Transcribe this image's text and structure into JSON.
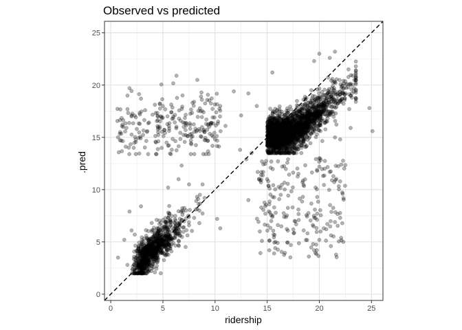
{
  "chart_data": {
    "type": "scatter",
    "title": "Observed vs predicted",
    "xlabel": "ridership",
    "ylabel": ".pred",
    "xlim": [
      -0.6,
      26.1
    ],
    "ylim": [
      -0.6,
      26.1
    ],
    "x_ticks": [
      0,
      5,
      10,
      15,
      20,
      25
    ],
    "y_ticks": [
      0,
      5,
      10,
      15,
      20,
      25
    ],
    "grid": true,
    "aspect": "equal",
    "reference_line": {
      "slope": 1,
      "intercept": 0,
      "style": "dashed",
      "color": "#000000"
    },
    "point_style": {
      "color": "#000000",
      "alpha": 0.3,
      "stroke": "#000000"
    },
    "clusters": [
      {
        "description": "low ridership, low prediction",
        "x_range": [
          1.5,
          8.5
        ],
        "y_range": [
          2,
          12
        ],
        "center": [
          4,
          4.5
        ],
        "approx_n": 900
      },
      {
        "description": "high ridership, high prediction",
        "x_range": [
          13.5,
          23.5
        ],
        "y_range": [
          13.5,
          23.3
        ],
        "center": [
          18,
          16.5
        ],
        "approx_n": 2200
      },
      {
        "description": "low ridership, mid prediction",
        "x_range": [
          0.5,
          10.5
        ],
        "y_range": [
          13.5,
          21.7
        ],
        "center": [
          4.5,
          16
        ],
        "approx_n": 250
      },
      {
        "description": "high ridership, low prediction",
        "x_range": [
          13.5,
          22.5
        ],
        "y_range": [
          3.5,
          13
        ],
        "center": [
          18,
          7
        ],
        "approx_n": 200
      }
    ],
    "points": [
      [
        0.7,
        15.0
      ],
      [
        0.9,
        15.5
      ],
      [
        1.2,
        16.0
      ],
      [
        1.5,
        15.9
      ],
      [
        1.6,
        17.7
      ],
      [
        1.6,
        19.0
      ],
      [
        1.8,
        19.7
      ],
      [
        2.0,
        17.1
      ],
      [
        2.2,
        14.0
      ],
      [
        2.5,
        15.8
      ],
      [
        2.9,
        18.7
      ],
      [
        3.5,
        15.6
      ],
      [
        4.5,
        17.0
      ],
      [
        5.0,
        18.0
      ],
      [
        5.5,
        14.2
      ],
      [
        6.0,
        17.0
      ],
      [
        6.3,
        20.9
      ],
      [
        6.7,
        16.6
      ],
      [
        7.0,
        16.0
      ],
      [
        8.0,
        18.4
      ],
      [
        8.3,
        20.5
      ],
      [
        8.6,
        17.5
      ],
      [
        9.0,
        15.5
      ],
      [
        10.0,
        14.8
      ],
      [
        10.5,
        18.0
      ],
      [
        11.0,
        16.1
      ],
      [
        11.8,
        19.4
      ],
      [
        12.5,
        17.1
      ],
      [
        13.2,
        19.2
      ],
      [
        0.7,
        3.5
      ],
      [
        1.3,
        5.2
      ],
      [
        1.6,
        2.8
      ],
      [
        1.8,
        7.9
      ],
      [
        2.0,
        6.1
      ],
      [
        2.3,
        5.7
      ],
      [
        2.6,
        4.3
      ],
      [
        2.9,
        8.4
      ],
      [
        3.2,
        3.1
      ],
      [
        3.5,
        4.3
      ],
      [
        4.5,
        6.0
      ],
      [
        5.0,
        7.1
      ],
      [
        6.0,
        4.9
      ],
      [
        6.5,
        11.0
      ],
      [
        7.0,
        6.4
      ],
      [
        7.5,
        10.5
      ],
      [
        8.0,
        7.3
      ],
      [
        9.0,
        9.2
      ],
      [
        10.2,
        7.2
      ],
      [
        10.5,
        6.3
      ],
      [
        8.5,
        6.8
      ],
      [
        6.8,
        12.3
      ],
      [
        5.5,
        10.2
      ],
      [
        14.5,
        12.7
      ],
      [
        15.0,
        11.0
      ],
      [
        15.2,
        8.6
      ],
      [
        15.5,
        7.4
      ],
      [
        15.8,
        5.0
      ],
      [
        16.0,
        4.9
      ],
      [
        16.3,
        9.5
      ],
      [
        17.0,
        12.9
      ],
      [
        17.5,
        6.2
      ],
      [
        18.0,
        8.1
      ],
      [
        18.5,
        6.1
      ],
      [
        19.0,
        3.6
      ],
      [
        19.5,
        4.2
      ],
      [
        19.8,
        9.3
      ],
      [
        20.0,
        5.2
      ],
      [
        20.5,
        12.0
      ],
      [
        21.0,
        11.7
      ],
      [
        21.5,
        6.9
      ],
      [
        22.0,
        7.3
      ],
      [
        22.3,
        5.0
      ],
      [
        14.5,
        5.1
      ],
      [
        15.2,
        4.2
      ],
      [
        16.2,
        17.5
      ],
      [
        15.5,
        21.2
      ],
      [
        14.0,
        18.0
      ],
      [
        13.5,
        13.5
      ],
      [
        21.0,
        22.6
      ],
      [
        21.5,
        23.2
      ],
      [
        19.5,
        22.3
      ],
      [
        20.0,
        23.0
      ],
      [
        22.8,
        21.5
      ],
      [
        23.2,
        20.9
      ],
      [
        23.0,
        19.0
      ],
      [
        22.0,
        18.5
      ],
      [
        24.8,
        17.8
      ],
      [
        25.1,
        15.6
      ],
      [
        21.5,
        15.0
      ],
      [
        22.0,
        14.8
      ],
      [
        23.0,
        15.9
      ],
      [
        13.0,
        12.9
      ],
      [
        13.2,
        9.0
      ],
      [
        12.4,
        13.8
      ]
    ]
  }
}
